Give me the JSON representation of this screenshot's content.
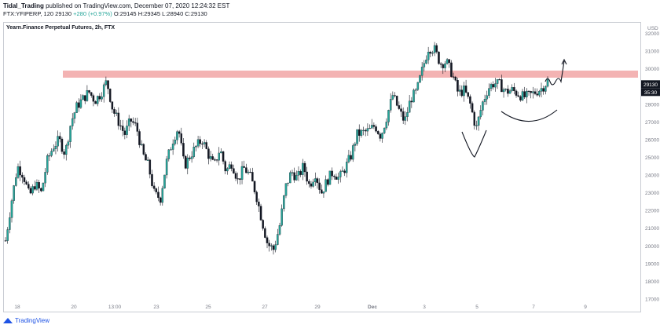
{
  "header": {
    "author": "Tidal_Trading",
    "published": "published on TradingView.com, December 07, 2020 12:24:32 EST"
  },
  "ticker": {
    "symbol": "FTX:YFIPERP, 120",
    "last": "29130",
    "change": "+280 (+0.97%)",
    "open": "O:29145",
    "high": "H:29345",
    "low": "L:28940",
    "close": "C:29130"
  },
  "footer": {
    "brand": "TradingView"
  },
  "chart_data": {
    "type": "candlestick",
    "title": "Yearn.Finance Perpetual Futures, 2h, FTX",
    "price_unit": "USD",
    "ylim": [
      17000,
      32600
    ],
    "yticks": [
      17000,
      18000,
      19000,
      20000,
      21000,
      22000,
      23000,
      24000,
      25000,
      26000,
      27000,
      28000,
      30000,
      31000,
      32000
    ],
    "xlabels": [
      "18",
      "20",
      "13:00",
      "23",
      "25",
      "27",
      "29",
      "Dec",
      "3",
      "5",
      "7",
      "9"
    ],
    "last_price_label": "29130",
    "countdown_label": "35:30",
    "resistance_zone": [
      29500,
      29900
    ],
    "colors": {
      "up": "#26a69a",
      "down": "#131722",
      "zone": "#ef9a9a",
      "axis_text": "#787b86"
    },
    "path": [
      20300,
      22500,
      24500,
      24000,
      22800,
      23500,
      23000,
      24800,
      25600,
      26000,
      25200,
      27000,
      27900,
      28300,
      28700,
      28200,
      28600,
      29300,
      27700,
      27000,
      26300,
      27100,
      26700,
      25200,
      24500,
      22900,
      22700,
      24700,
      25900,
      26700,
      24500,
      25100,
      25600,
      26000,
      25200,
      24500,
      25500,
      24200,
      24700,
      23700,
      24400,
      24000,
      23000,
      21500,
      20100,
      19800,
      21100,
      23300,
      24200,
      23800,
      24500,
      23400,
      24100,
      23000,
      23700,
      24200,
      23800,
      24400,
      25100,
      26300,
      26400,
      26500,
      26800,
      26200,
      27300,
      28500,
      27700,
      27000,
      28300,
      28700,
      30000,
      31200,
      31100,
      30300,
      30400,
      29700,
      28600,
      28800,
      28000,
      26600,
      28000,
      28900,
      29200,
      29100,
      28700,
      28800,
      28600,
      28400,
      28500,
      28700,
      28900,
      29300
    ],
    "annotations": [
      "v-shape-bottom",
      "rounded-bottom-arc",
      "breakout-arrow-up"
    ]
  }
}
